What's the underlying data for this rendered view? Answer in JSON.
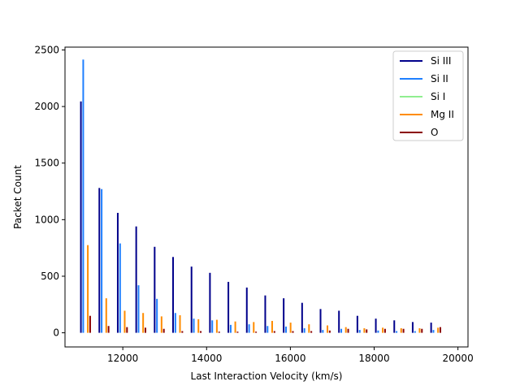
{
  "chart_data": {
    "type": "bar",
    "title": "",
    "xlabel": "Last Interaction Velocity (km/s)",
    "ylabel": "Packet Count",
    "xlim": [
      10620,
      20240
    ],
    "ylim": [
      -125,
      2525
    ],
    "xticks": [
      12000,
      14000,
      16000,
      18000,
      20000
    ],
    "yticks": [
      0,
      500,
      1000,
      1500,
      2000,
      2500
    ],
    "grid": false,
    "legend_position": "top-right",
    "bin_width": 440,
    "x": [
      11000,
      11440,
      11880,
      12320,
      12760,
      13200,
      13640,
      14080,
      14520,
      14960,
      15400,
      15840,
      16280,
      16720,
      17160,
      17600,
      18040,
      18480,
      18920,
      19360
    ],
    "series": [
      {
        "name": "Si III",
        "color": "#00008b",
        "values": [
          2045,
          1280,
          1060,
          940,
          760,
          670,
          585,
          530,
          450,
          400,
          330,
          305,
          265,
          210,
          195,
          150,
          125,
          110,
          95,
          90
        ]
      },
      {
        "name": "Si II",
        "color": "#1e7fff",
        "values": [
          2415,
          1270,
          790,
          420,
          300,
          175,
          125,
          110,
          70,
          75,
          60,
          55,
          40,
          25,
          35,
          25,
          20,
          15,
          15,
          25
        ]
      },
      {
        "name": "Si I",
        "color": "#90ee90",
        "values": [
          0,
          0,
          0,
          0,
          0,
          0,
          0,
          0,
          0,
          0,
          0,
          0,
          0,
          0,
          0,
          0,
          0,
          0,
          0,
          0
        ]
      },
      {
        "name": "Mg II",
        "color": "#ff8c00",
        "values": [
          775,
          305,
          195,
          175,
          145,
          155,
          120,
          115,
          100,
          95,
          105,
          90,
          75,
          65,
          50,
          40,
          45,
          40,
          40,
          45
        ]
      },
      {
        "name": "O",
        "color": "#8b0000",
        "values": [
          150,
          60,
          50,
          45,
          35,
          15,
          15,
          10,
          10,
          10,
          15,
          15,
          15,
          20,
          35,
          30,
          35,
          35,
          35,
          50
        ]
      }
    ]
  }
}
